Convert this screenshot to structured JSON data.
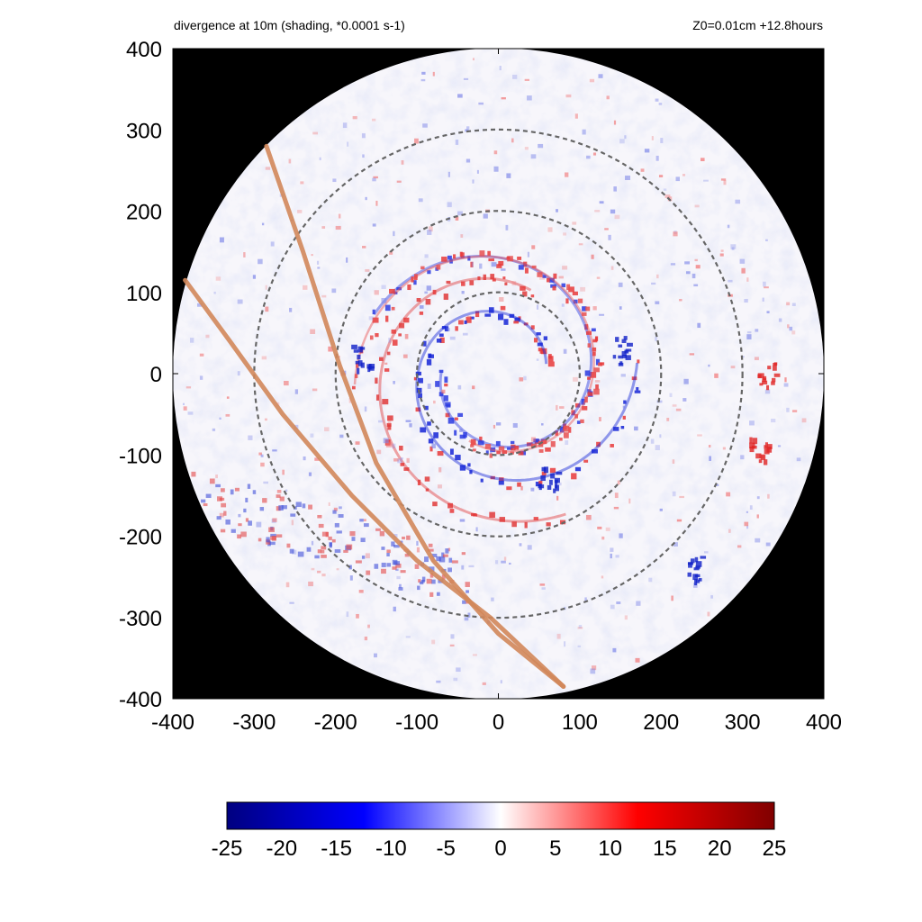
{
  "chart_data": {
    "type": "heatmap",
    "title": "divergence at 10m (shading, *0.0001 s-1)",
    "subtitle": "Z0=0.01cm  +12.8hours",
    "xlim": [
      -400,
      400
    ],
    "ylim": [
      -400,
      400
    ],
    "x_ticks": [
      "-400",
      "-300",
      "-200",
      "-100",
      "0",
      "100",
      "200",
      "300",
      "400"
    ],
    "y_ticks": [
      "400",
      "300",
      "200",
      "100",
      "0",
      "-100",
      "-200",
      "-300",
      "-400"
    ],
    "domain": {
      "shape": "circle",
      "radius": 400,
      "outside_color": "#000000"
    },
    "reference_circles_radius": [
      100,
      200,
      300
    ],
    "colorbar": {
      "min": -25,
      "max": 25,
      "ticks": [
        "-25",
        "-20",
        "-15",
        "-10",
        "-5",
        "0",
        "5",
        "10",
        "15",
        "20",
        "25"
      ],
      "stops": [
        "#000080",
        "#0000ff",
        "#ffffff",
        "#ff0000",
        "#800000"
      ]
    },
    "track_lines": [
      {
        "color": "#d2875a",
        "points": [
          [
            -285,
            280
          ],
          [
            -240,
            150
          ],
          [
            -195,
            10
          ],
          [
            -150,
            -110
          ],
          [
            -80,
            -230
          ],
          [
            0,
            -320
          ],
          [
            80,
            -385
          ]
        ]
      },
      {
        "color": "#d2875a",
        "points": [
          [
            -385,
            115
          ],
          [
            -330,
            40
          ],
          [
            -265,
            -50
          ],
          [
            -180,
            -150
          ],
          [
            -100,
            -230
          ],
          [
            -10,
            -300
          ],
          [
            80,
            -385
          ]
        ]
      }
    ],
    "notable_features": [
      {
        "sign": "negative",
        "x": -170,
        "y": 20
      },
      {
        "sign": "negative",
        "x": 150,
        "y": 30
      },
      {
        "sign": "negative",
        "x": 60,
        "y": -130
      },
      {
        "sign": "positive",
        "x": 330,
        "y": 0
      },
      {
        "sign": "positive",
        "x": 320,
        "y": -90
      },
      {
        "sign": "negative",
        "x": 240,
        "y": -240
      }
    ]
  }
}
